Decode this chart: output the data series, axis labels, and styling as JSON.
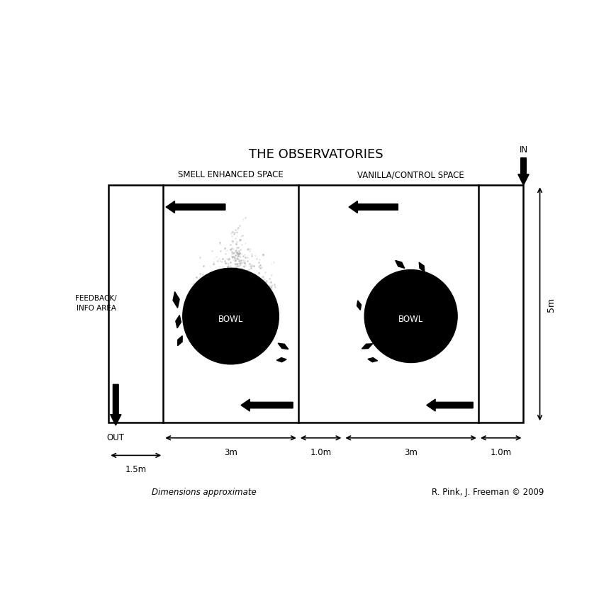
{
  "title": "THE OBSERVATORIES",
  "left_label": "SMELL ENHANCED SPACE",
  "right_label": "VANILLA/CONTROL SPACE",
  "feedback_label": "FEEDBACK/\nINFO AREA",
  "bowl_label": "BOWL",
  "in_label": "IN",
  "out_label": "OUT",
  "dim_label": "Dimensions approximate",
  "credit_label": "R. Pink, J. Freeman © 2009",
  "dim_3m_1": "3m",
  "dim_1m_1": "1.0m",
  "dim_3m_2": "3m",
  "dim_1m_2": "1.0m",
  "dim_15m": "1.5m",
  "dim_5m": "5m",
  "bg_color": "#ffffff"
}
